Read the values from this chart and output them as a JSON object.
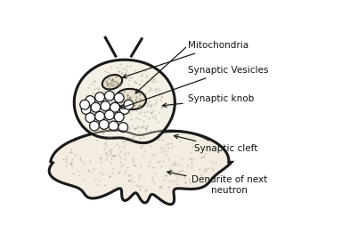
{
  "bg_color": "#ffffff",
  "line_color": "#1a1a1a",
  "fill_knob": "#f5f0e5",
  "fill_dendrite": "#f2ede0",
  "fill_mito": "#e8e0cc",
  "stipple_color": "#9a9080",
  "vesicle_fill": "#ffffff",
  "labels": {
    "mitochondria": "Mitochondria",
    "vesicles": "Synaptic Vesicles",
    "knob": "Synaptic knob",
    "cleft": "Synaptic cleft",
    "dendrite": "Dendrite of next\nneutron"
  }
}
